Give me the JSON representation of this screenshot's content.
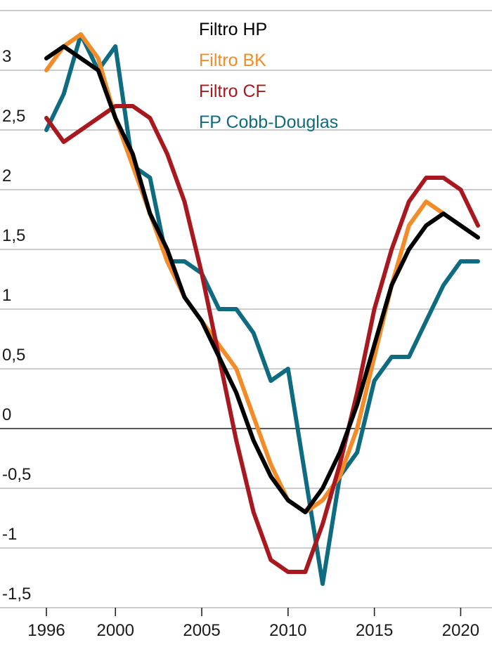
{
  "chart_data": {
    "type": "line",
    "title": "",
    "xlabel": "",
    "ylabel": "",
    "x": [
      1996,
      1997,
      1998,
      1999,
      2000,
      2001,
      2002,
      2003,
      2004,
      2005,
      2006,
      2007,
      2008,
      2009,
      2010,
      2011,
      2012,
      2013,
      2014,
      2015,
      2016,
      2017,
      2018,
      2019,
      2020,
      2021
    ],
    "xlim": [
      1996,
      2021
    ],
    "x_ticks": [
      1996,
      2000,
      2005,
      2010,
      2015,
      2020
    ],
    "x_tick_labels": [
      "1996",
      "2000",
      "2005",
      "2010",
      "2015",
      "2020"
    ],
    "ylim": [
      -1.5,
      3.5
    ],
    "y_ticks": [
      3,
      2.5,
      2,
      1.5,
      1,
      0.5,
      0,
      -0.5,
      -1,
      -1.5
    ],
    "y_tick_labels": [
      "3",
      "2,5",
      "2",
      "1,5",
      "1",
      "0,5",
      "0",
      "-0,5",
      "-1",
      "-1,5"
    ],
    "grid": "horizontal",
    "legend_position": "top-center",
    "series": [
      {
        "name": "FP Cobb-Douglas",
        "color": "#0f6b80",
        "values": [
          2.5,
          2.8,
          3.3,
          3.0,
          3.2,
          2.2,
          2.1,
          1.4,
          1.4,
          1.3,
          1.0,
          1.0,
          0.8,
          0.4,
          0.5,
          -0.4,
          -1.3,
          -0.4,
          -0.2,
          0.4,
          0.6,
          0.6,
          0.9,
          1.2,
          1.4,
          1.4
        ]
      },
      {
        "name": "Filtro BK",
        "color": "#f28c28",
        "values": [
          3.0,
          3.2,
          3.3,
          3.1,
          2.6,
          2.2,
          1.8,
          1.4,
          1.1,
          0.9,
          0.7,
          0.5,
          0.1,
          -0.3,
          -0.6,
          -0.7,
          -0.6,
          -0.4,
          0.0,
          0.6,
          1.2,
          1.7,
          1.9,
          1.8,
          null,
          null
        ]
      },
      {
        "name": "Filtro CF",
        "color": "#a8191f",
        "values": [
          2.6,
          2.4,
          2.5,
          2.6,
          2.7,
          2.7,
          2.6,
          2.3,
          1.9,
          1.3,
          0.6,
          -0.1,
          -0.7,
          -1.1,
          -1.2,
          -1.2,
          -0.8,
          -0.3,
          0.3,
          1.0,
          1.5,
          1.9,
          2.1,
          2.1,
          2.0,
          1.7
        ]
      },
      {
        "name": "Filtro HP",
        "color": "#000000",
        "values": [
          3.1,
          3.2,
          3.1,
          3.0,
          2.6,
          2.3,
          1.8,
          1.5,
          1.1,
          0.9,
          0.6,
          0.3,
          -0.1,
          -0.4,
          -0.6,
          -0.7,
          -0.5,
          -0.2,
          0.2,
          0.7,
          1.2,
          1.5,
          1.7,
          1.8,
          1.7,
          1.6
        ]
      }
    ],
    "legend": [
      {
        "label": "Filtro HP",
        "color": "#000000"
      },
      {
        "label": "Filtro BK",
        "color": "#f28c28"
      },
      {
        "label": "Filtro CF",
        "color": "#a8191f"
      },
      {
        "label": "FP Cobb-Douglas",
        "color": "#0f6b80"
      }
    ]
  }
}
